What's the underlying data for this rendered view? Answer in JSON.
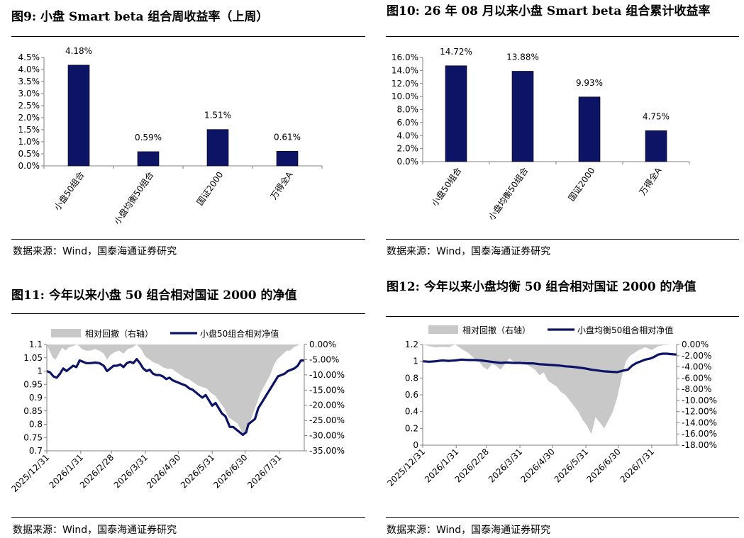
{
  "source_text": "数据来源：Wind，国泰海通证券研究",
  "panels": [
    {
      "title": "图9:  小盘 Smart beta 组合周收益率（上周）"
    },
    {
      "title": "图10:  26 年 08 月以来小盘 Smart  beta 组合累计收益率"
    },
    {
      "title": "图11:  今年以来小盘 50 组合相对国证 2000 的净值"
    },
    {
      "title": "图12:  今年以来小盘均衡 50 组合相对国证 2000 的净值"
    }
  ],
  "chart_data": [
    {
      "type": "bar",
      "categories": [
        "小盘50组合",
        "小盘均衡50组合",
        "国证2000",
        "万得全A"
      ],
      "values": [
        4.18,
        0.59,
        1.51,
        0.61
      ],
      "value_labels": [
        "4.18%",
        "0.59%",
        "1.51%",
        "0.61%"
      ],
      "yticks": [
        "0.0%",
        "0.5%",
        "1.0%",
        "1.5%",
        "2.0%",
        "2.5%",
        "3.0%",
        "3.5%",
        "4.0%",
        "4.5%"
      ],
      "ylim": [
        0,
        4.5
      ],
      "color": "#0d1466"
    },
    {
      "type": "bar",
      "categories": [
        "小盘50组合",
        "小盘均衡50组合",
        "国证2000",
        "万得全A"
      ],
      "values": [
        14.72,
        13.88,
        9.93,
        4.75
      ],
      "value_labels": [
        "14.72%",
        "13.88%",
        "9.93%",
        "4.75%"
      ],
      "yticks": [
        "0.0%",
        "2.0%",
        "4.0%",
        "6.0%",
        "8.0%",
        "10.0%",
        "12.0%",
        "14.0%",
        "16.0%"
      ],
      "ylim": [
        0,
        16
      ],
      "color": "#0d1466"
    },
    {
      "type": "area+line",
      "legend": [
        "相对回撤（右轴）",
        "小盘50组合相对净值"
      ],
      "xticks": [
        "2025/12/31",
        "2026/1/31",
        "2026/2/28",
        "2026/3/31",
        "2026/4/30",
        "2026/5/31",
        "2026/6/30",
        "2026/7/31"
      ],
      "xtick_days": [
        0,
        31,
        59,
        90,
        120,
        151,
        181,
        212
      ],
      "xlim": [
        0,
        235
      ],
      "yleft_ticks": [
        "0.7",
        "0.75",
        "0.8",
        "0.85",
        "0.9",
        "0.95",
        "1",
        "1.05",
        "1.1"
      ],
      "yleft_lim": [
        0.7,
        1.1
      ],
      "yright_ticks": [
        "0.00%",
        "-5.00%",
        "-10.00%",
        "-15.00%",
        "-20.00%",
        "-25.00%",
        "-30.00%",
        "-35.00%"
      ],
      "yright_lim": [
        -35,
        0
      ],
      "line_color": "#0d1466",
      "area_color": "#c8c8c8",
      "nav": [
        [
          0,
          1.0
        ],
        [
          3,
          0.995
        ],
        [
          6,
          0.98
        ],
        [
          9,
          0.975
        ],
        [
          12,
          0.99
        ],
        [
          15,
          1.01
        ],
        [
          18,
          1.0
        ],
        [
          21,
          1.01
        ],
        [
          24,
          1.02
        ],
        [
          27,
          1.015
        ],
        [
          30,
          1.04
        ],
        [
          33,
          1.035
        ],
        [
          36,
          1.03
        ],
        [
          40,
          1.03
        ],
        [
          44,
          1.032
        ],
        [
          48,
          1.03
        ],
        [
          52,
          1.02
        ],
        [
          55,
          1.0
        ],
        [
          58,
          1.01
        ],
        [
          61,
          1.02
        ],
        [
          64,
          1.02
        ],
        [
          67,
          1.025
        ],
        [
          70,
          1.015
        ],
        [
          73,
          1.03
        ],
        [
          76,
          1.035
        ],
        [
          79,
          1.03
        ],
        [
          82,
          1.045
        ],
        [
          85,
          1.03
        ],
        [
          88,
          1.01
        ],
        [
          91,
          1.0
        ],
        [
          94,
          1.005
        ],
        [
          97,
          0.99
        ],
        [
          100,
          0.985
        ],
        [
          103,
          0.985
        ],
        [
          106,
          0.98
        ],
        [
          109,
          0.97
        ],
        [
          112,
          0.975
        ],
        [
          115,
          0.965
        ],
        [
          118,
          0.96
        ],
        [
          121,
          0.955
        ],
        [
          124,
          0.95
        ],
        [
          127,
          0.945
        ],
        [
          130,
          0.935
        ],
        [
          133,
          0.93
        ],
        [
          136,
          0.92
        ],
        [
          139,
          0.91
        ],
        [
          142,
          0.9
        ],
        [
          145,
          0.91
        ],
        [
          148,
          0.89
        ],
        [
          151,
          0.87
        ],
        [
          154,
          0.88
        ],
        [
          157,
          0.86
        ],
        [
          160,
          0.84
        ],
        [
          163,
          0.83
        ],
        [
          165,
          0.81
        ],
        [
          167,
          0.79
        ],
        [
          170,
          0.79
        ],
        [
          173,
          0.78
        ],
        [
          176,
          0.77
        ],
        [
          179,
          0.76
        ],
        [
          182,
          0.77
        ],
        [
          184,
          0.8
        ],
        [
          187,
          0.81
        ],
        [
          190,
          0.82
        ],
        [
          193,
          0.86
        ],
        [
          196,
          0.88
        ],
        [
          199,
          0.9
        ],
        [
          202,
          0.92
        ],
        [
          205,
          0.94
        ],
        [
          208,
          0.96
        ],
        [
          211,
          0.98
        ],
        [
          214,
          0.985
        ],
        [
          217,
          0.99
        ],
        [
          220,
          1.0
        ],
        [
          223,
          1.005
        ],
        [
          226,
          1.01
        ],
        [
          229,
          1.02
        ],
        [
          232,
          1.04
        ],
        [
          235,
          1.04
        ]
      ],
      "drawdown": [
        [
          0,
          0
        ],
        [
          5,
          -4
        ],
        [
          8,
          -5
        ],
        [
          11,
          -3
        ],
        [
          14,
          -1
        ],
        [
          17,
          -2
        ],
        [
          20,
          -1
        ],
        [
          24,
          -0.5
        ],
        [
          28,
          0
        ],
        [
          32,
          -1.5
        ],
        [
          36,
          -2
        ],
        [
          40,
          -2
        ],
        [
          44,
          -1.5
        ],
        [
          48,
          -2
        ],
        [
          52,
          -3
        ],
        [
          55,
          -5
        ],
        [
          58,
          -3.5
        ],
        [
          62,
          -2.5
        ],
        [
          66,
          -2
        ],
        [
          70,
          -3
        ],
        [
          74,
          -1.5
        ],
        [
          78,
          -1
        ],
        [
          82,
          0
        ],
        [
          86,
          -1.5
        ],
        [
          90,
          -4
        ],
        [
          94,
          -5
        ],
        [
          98,
          -6
        ],
        [
          102,
          -6.5
        ],
        [
          106,
          -7.5
        ],
        [
          110,
          -8
        ],
        [
          114,
          -8
        ],
        [
          118,
          -9
        ],
        [
          122,
          -10
        ],
        [
          126,
          -11
        ],
        [
          130,
          -11.5
        ],
        [
          134,
          -12.5
        ],
        [
          138,
          -13.5
        ],
        [
          142,
          -14
        ],
        [
          146,
          -14.5
        ],
        [
          150,
          -16
        ],
        [
          154,
          -17
        ],
        [
          158,
          -19
        ],
        [
          162,
          -21
        ],
        [
          166,
          -24
        ],
        [
          170,
          -25
        ],
        [
          174,
          -26
        ],
        [
          177,
          -28
        ],
        [
          180,
          -30
        ],
        [
          183,
          -27
        ],
        [
          186,
          -25
        ],
        [
          189,
          -22
        ],
        [
          192,
          -19
        ],
        [
          195,
          -16
        ],
        [
          198,
          -14
        ],
        [
          201,
          -12
        ],
        [
          204,
          -10
        ],
        [
          207,
          -7
        ],
        [
          210,
          -5
        ],
        [
          213,
          -4
        ],
        [
          216,
          -3
        ],
        [
          219,
          -2
        ],
        [
          222,
          -2
        ],
        [
          225,
          -1
        ],
        [
          228,
          -0.5
        ],
        [
          231,
          0
        ],
        [
          235,
          0
        ]
      ]
    },
    {
      "type": "area+line",
      "legend": [
        "相对回撤（右轴）",
        "小盘均衡50组合相对净值"
      ],
      "xticks": [
        "2025/12/31",
        "2026/1/31",
        "2026/2/28",
        "2026/3/31",
        "2026/4/30",
        "2026/5/31",
        "2026/6/30",
        "2026/7/31"
      ],
      "xtick_days": [
        0,
        31,
        59,
        90,
        120,
        151,
        181,
        212
      ],
      "xlim": [
        0,
        235
      ],
      "yleft_ticks": [
        "0",
        "0.2",
        "0.4",
        "0.6",
        "0.8",
        "1",
        "1.2"
      ],
      "yleft_lim": [
        0,
        1.2
      ],
      "yright_ticks": [
        "0.00%",
        "-2.00%",
        "-4.00%",
        "-6.00%",
        "-8.00%",
        "-10.00%",
        "-12.00%",
        "-14.00%",
        "-16.00%",
        "-18.00%"
      ],
      "yright_lim": [
        -18,
        0
      ],
      "line_color": "#0d1466",
      "area_color": "#c8c8c8",
      "nav": [
        [
          0,
          1.0
        ],
        [
          6,
          0.995
        ],
        [
          12,
          1.0
        ],
        [
          18,
          1.01
        ],
        [
          24,
          1.005
        ],
        [
          30,
          1.01
        ],
        [
          36,
          1.02
        ],
        [
          42,
          1.015
        ],
        [
          48,
          1.015
        ],
        [
          54,
          1.01
        ],
        [
          60,
          1.0
        ],
        [
          66,
          0.99
        ],
        [
          72,
          0.98
        ],
        [
          78,
          0.985
        ],
        [
          84,
          0.98
        ],
        [
          90,
          0.98
        ],
        [
          96,
          0.975
        ],
        [
          102,
          0.975
        ],
        [
          108,
          0.965
        ],
        [
          114,
          0.96
        ],
        [
          120,
          0.955
        ],
        [
          126,
          0.95
        ],
        [
          132,
          0.94
        ],
        [
          138,
          0.935
        ],
        [
          144,
          0.925
        ],
        [
          150,
          0.915
        ],
        [
          156,
          0.9
        ],
        [
          162,
          0.89
        ],
        [
          168,
          0.88
        ],
        [
          174,
          0.875
        ],
        [
          180,
          0.87
        ],
        [
          186,
          0.89
        ],
        [
          190,
          0.9
        ],
        [
          194,
          0.95
        ],
        [
          198,
          0.98
        ],
        [
          202,
          1.0
        ],
        [
          206,
          1.02
        ],
        [
          210,
          1.03
        ],
        [
          214,
          1.05
        ],
        [
          218,
          1.08
        ],
        [
          222,
          1.09
        ],
        [
          226,
          1.09
        ],
        [
          230,
          1.085
        ],
        [
          235,
          1.08
        ]
      ],
      "drawdown": [
        [
          0,
          0
        ],
        [
          6,
          -0.3
        ],
        [
          12,
          -0.5
        ],
        [
          18,
          -0.4
        ],
        [
          24,
          -0.5
        ],
        [
          30,
          0
        ],
        [
          36,
          -0.8
        ],
        [
          42,
          -1.5
        ],
        [
          48,
          -2.5
        ],
        [
          52,
          -3
        ],
        [
          56,
          -4
        ],
        [
          60,
          -4.5
        ],
        [
          64,
          -3.5
        ],
        [
          68,
          -3.8
        ],
        [
          72,
          -4.5
        ],
        [
          76,
          -3.5
        ],
        [
          80,
          -2.5
        ],
        [
          84,
          -3
        ],
        [
          88,
          -3.5
        ],
        [
          92,
          -3
        ],
        [
          96,
          -3.5
        ],
        [
          100,
          -4
        ],
        [
          104,
          -4.5
        ],
        [
          108,
          -5.5
        ],
        [
          112,
          -5
        ],
        [
          116,
          -6.5
        ],
        [
          120,
          -7
        ],
        [
          124,
          -7.5
        ],
        [
          128,
          -8.5
        ],
        [
          132,
          -9
        ],
        [
          136,
          -10
        ],
        [
          140,
          -11
        ],
        [
          144,
          -12
        ],
        [
          148,
          -13.5
        ],
        [
          152,
          -14.5
        ],
        [
          156,
          -16
        ],
        [
          160,
          -13
        ],
        [
          164,
          -14
        ],
        [
          168,
          -15
        ],
        [
          172,
          -13.5
        ],
        [
          176,
          -12
        ],
        [
          180,
          -9.5
        ],
        [
          184,
          -6
        ],
        [
          188,
          -3
        ],
        [
          192,
          -2
        ],
        [
          196,
          -1.5
        ],
        [
          200,
          -1
        ],
        [
          206,
          -0.5
        ],
        [
          212,
          -1
        ],
        [
          218,
          -0.3
        ],
        [
          224,
          -0.1
        ],
        [
          230,
          0
        ],
        [
          235,
          0
        ]
      ]
    }
  ]
}
